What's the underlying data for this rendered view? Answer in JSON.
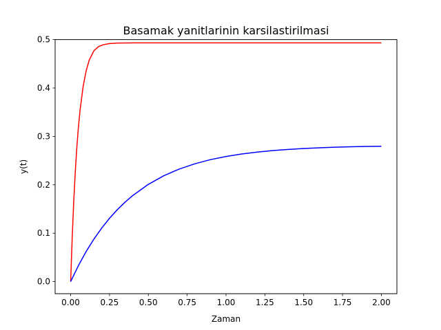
{
  "chart_data": {
    "type": "line",
    "title": "Basamak yanitlarinin karsilastirilmasi",
    "xlabel": "Zaman",
    "ylabel": "y(t)",
    "xlim": [
      -0.1,
      2.1
    ],
    "ylim": [
      -0.025,
      0.5
    ],
    "grid": false,
    "xticks": [
      0.0,
      0.25,
      0.5,
      0.75,
      1.0,
      1.25,
      1.5,
      1.75,
      2.0
    ],
    "xtick_labels": [
      "0.00",
      "0.25",
      "0.50",
      "0.75",
      "1.00",
      "1.25",
      "1.50",
      "1.75",
      "2.00"
    ],
    "yticks": [
      0.0,
      0.1,
      0.2,
      0.3,
      0.4,
      0.5
    ],
    "ytick_labels": [
      "0.0",
      "0.1",
      "0.2",
      "0.3",
      "0.4",
      "0.5"
    ],
    "series": [
      {
        "color": "#ff0000",
        "x": [
          0,
          0.01,
          0.02,
          0.03,
          0.04,
          0.05,
          0.06,
          0.08,
          0.1,
          0.12,
          0.15,
          0.18,
          0.21,
          0.25,
          0.3,
          0.35,
          0.4,
          0.5,
          0.75,
          1.0,
          1.25,
          1.5,
          1.75,
          2.0
        ],
        "y": [
          0,
          0.0918,
          0.1668,
          0.2281,
          0.2783,
          0.3193,
          0.3528,
          0.4026,
          0.4359,
          0.4581,
          0.4771,
          0.4856,
          0.4894,
          0.4918,
          0.4928,
          0.4931,
          0.4932,
          0.4932,
          0.4932,
          0.4932,
          0.4932,
          0.4932,
          0.4932,
          0.4932
        ]
      },
      {
        "color": "#0000ff",
        "x": [
          0,
          0.05,
          0.1,
          0.15,
          0.2,
          0.25,
          0.3,
          0.35,
          0.4,
          0.5,
          0.6,
          0.7,
          0.8,
          0.9,
          1.0,
          1.1,
          1.2,
          1.3,
          1.4,
          1.5,
          1.6,
          1.7,
          1.8,
          1.9,
          2.0
        ],
        "y": [
          0,
          0.0331,
          0.0623,
          0.088,
          0.1107,
          0.1308,
          0.1485,
          0.1641,
          0.1779,
          0.2009,
          0.2188,
          0.2327,
          0.2435,
          0.252,
          0.2585,
          0.2636,
          0.2676,
          0.2707,
          0.2731,
          0.275,
          0.2764,
          0.2776,
          0.2785,
          0.2792,
          0.2797
        ]
      }
    ]
  }
}
